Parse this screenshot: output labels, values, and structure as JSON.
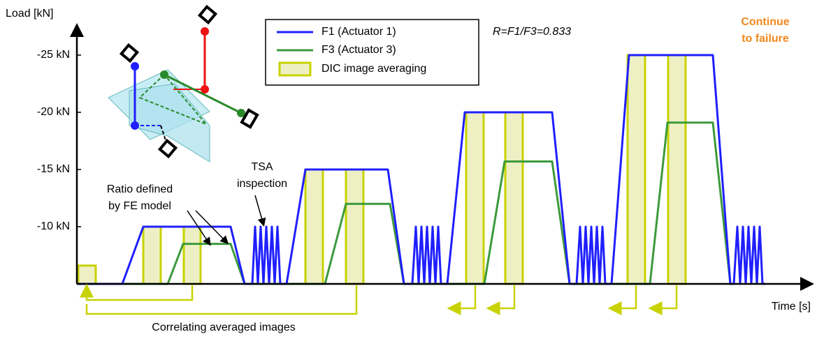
{
  "chart_data": {
    "type": "line",
    "title_y": "Load [kN]",
    "title_x": "Time [s]",
    "xlim": [
      0,
      1050
    ],
    "ylim": [
      -5,
      -27.5
    ],
    "yticks": [
      {
        "value": -25,
        "label": "-25 kN"
      },
      {
        "value": -20,
        "label": "-20 kN"
      },
      {
        "value": -15,
        "label": "-15 kN"
      },
      {
        "value": -10,
        "label": "-10 kN"
      }
    ],
    "series": [
      {
        "name": "F1 (Actuator 1)",
        "color": "#1f1fff",
        "x": [
          0,
          65,
          95,
          220,
          240,
          251,
          255,
          259,
          263,
          267,
          271,
          275,
          279,
          283,
          287,
          291,
          300,
          327,
          445,
          468,
          480,
          485,
          489,
          493,
          497,
          501,
          505,
          509,
          513,
          517,
          521,
          530,
          555,
          680,
          705,
          715,
          720,
          724,
          728,
          732,
          736,
          740,
          744,
          748,
          752,
          756,
          765,
          790,
          910,
          935,
          940,
          945,
          949,
          953,
          957,
          961,
          965,
          969,
          973,
          977,
          981,
          985
        ],
        "values": [
          -5,
          -5,
          -10,
          -10,
          -5,
          -5,
          -10,
          -5,
          -10,
          -5,
          -10,
          -5,
          -10,
          -5,
          -10,
          -5,
          -5,
          -15,
          -15,
          -5,
          -5,
          -10,
          -5,
          -10,
          -5,
          -10,
          -5,
          -10,
          -5,
          -10,
          -5,
          -5,
          -20,
          -20,
          -5,
          -5,
          -10,
          -5,
          -10,
          -5,
          -10,
          -5,
          -10,
          -5,
          -10,
          -5,
          -5,
          -25,
          -25,
          -5,
          -5,
          -10,
          -5,
          -10,
          -5,
          -10,
          -5,
          -10,
          -5,
          -10,
          -5,
          -5
        ]
      },
      {
        "name": "F3 (Actuator 3)",
        "color": "#3c9a3c",
        "x": [
          0,
          130,
          152,
          220,
          240,
          355,
          385,
          448,
          468,
          583,
          612,
          680,
          705,
          820,
          845,
          910,
          935
        ],
        "values": [
          -5,
          -5,
          -8.5,
          -8.5,
          -5,
          -5,
          -12,
          -12,
          -5,
          -5,
          -15.7,
          -15.7,
          -5,
          -5,
          -19.1,
          -19.1,
          -5
        ]
      }
    ],
    "dic": {
      "name": "DIC image averaging",
      "color": "#c8d200",
      "fill": "#eef0c4",
      "windows": [
        {
          "x0": 2,
          "x1": 27,
          "top": -6.6
        },
        {
          "x0": 95,
          "x1": 120,
          "top": -10
        },
        {
          "x0": 153,
          "x1": 177,
          "top": -10
        },
        {
          "x0": 327,
          "x1": 352,
          "top": -15
        },
        {
          "x0": 385,
          "x1": 410,
          "top": -15
        },
        {
          "x0": 557,
          "x1": 582,
          "top": -20
        },
        {
          "x0": 613,
          "x1": 638,
          "top": -20
        },
        {
          "x0": 788,
          "x1": 813,
          "top": -25
        },
        {
          "x0": 846,
          "x1": 871,
          "top": -25
        }
      ]
    },
    "ratio_label": "R=F1/F3=0.833",
    "annotations": [
      "Continue",
      "to failure",
      "TSA",
      "inspection",
      "Ratio defined",
      "by FE model",
      "Correlating averaged images"
    ]
  }
}
